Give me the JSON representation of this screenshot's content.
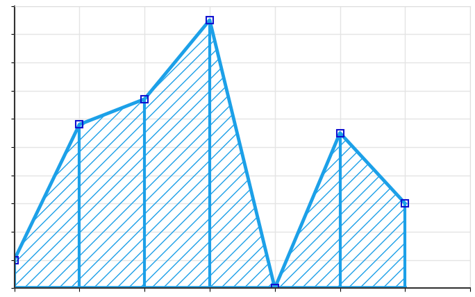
{
  "chart_data": {
    "type": "area",
    "x": [
      0,
      1,
      2,
      3,
      4,
      5,
      6
    ],
    "values": [
      1.0,
      5.8,
      6.7,
      9.5,
      0.0,
      5.5,
      3.0
    ],
    "color": "#1ca0e8",
    "marker": "square",
    "xlim": [
      0,
      7
    ],
    "xticks": [
      0,
      1,
      2,
      3,
      4,
      5,
      6,
      7
    ],
    "ylim": [
      0,
      10
    ],
    "yticks": [
      0,
      1,
      2,
      3,
      4,
      5,
      6,
      7,
      8,
      9,
      10
    ],
    "grid": true,
    "tick_labels": false
  }
}
